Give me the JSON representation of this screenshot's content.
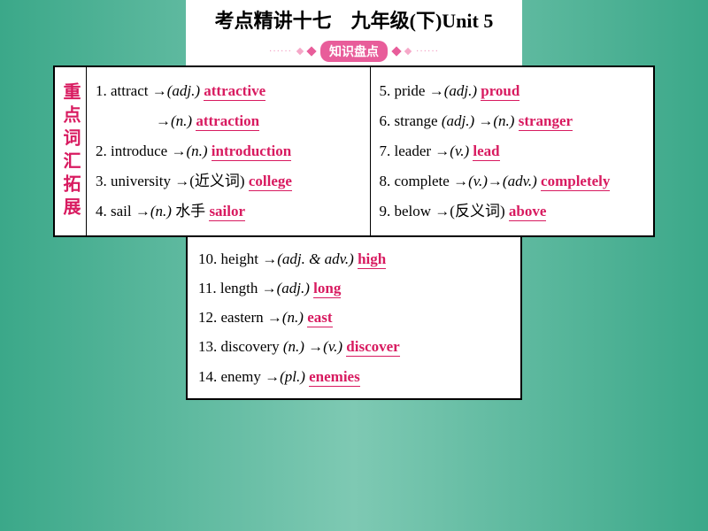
{
  "title": "考点精讲十七　九年级(下)Unit 5",
  "subtitle": "知识盘点",
  "side_label": "重点词汇拓展",
  "colors": {
    "accent": "#d81b60",
    "badge_bg": "#e85d9a",
    "bg_gradient_outer": "#3ba889",
    "bg_gradient_mid": "#7ec9b3"
  },
  "items": [
    {
      "n": "1",
      "base": "attract",
      "arr": "→",
      "pos": "(adj.)",
      "zh": "",
      "ans": "attractive",
      "extra": {
        "arr": "→",
        "pos": "(n.)",
        "ans": "attraction"
      }
    },
    {
      "n": "2",
      "base": "introduce",
      "arr": "→",
      "pos": "(n.)",
      "zh": "",
      "ans": "introduction"
    },
    {
      "n": "3",
      "base": "university",
      "arr": "→",
      "pos": "",
      "zh": "(近义词)",
      "ans": "college"
    },
    {
      "n": "4",
      "base": "sail",
      "arr": "→",
      "pos": "(n.)",
      "zh": "水手",
      "ans": "sailor"
    },
    {
      "n": "5",
      "base": "pride",
      "arr": "→",
      "pos": "(adj.)",
      "zh": "",
      "ans": "proud"
    },
    {
      "n": "6",
      "base": "strange",
      "base_pos": "(adj.)",
      "arr": "→",
      "pos": "(n.)",
      "zh": "",
      "ans": "stranger"
    },
    {
      "n": "7",
      "base": "leader",
      "arr": "→",
      "pos": "(v.)",
      "zh": "",
      "ans": "lead"
    },
    {
      "n": "8",
      "base": "complete",
      "arr": "→",
      "mid_pos": "(v.)",
      "arr2": "→",
      "pos": "(adv.)",
      "zh": "",
      "ans": "completely"
    },
    {
      "n": "9",
      "base": "below",
      "arr": "→",
      "pos": "",
      "zh": "(反义词)",
      "ans": "above"
    },
    {
      "n": "10",
      "base": "height",
      "arr": "→",
      "pos": "(adj. & adv.)",
      "zh": "",
      "ans": "high"
    },
    {
      "n": "11",
      "base": "length",
      "arr": "→",
      "pos": "(adj.)",
      "zh": "",
      "ans": "long"
    },
    {
      "n": "12",
      "base": "eastern",
      "arr": "→",
      "pos": "(n.)",
      "zh": "",
      "ans": "east"
    },
    {
      "n": "13",
      "base": "discovery",
      "base_pos": "(n.)",
      "arr": "→",
      "pos": "(v.)",
      "zh": "",
      "ans": "discover"
    },
    {
      "n": "14",
      "base": "enemy",
      "arr": "→",
      "pos": "(pl.)",
      "zh": "",
      "ans": "enemies"
    }
  ]
}
